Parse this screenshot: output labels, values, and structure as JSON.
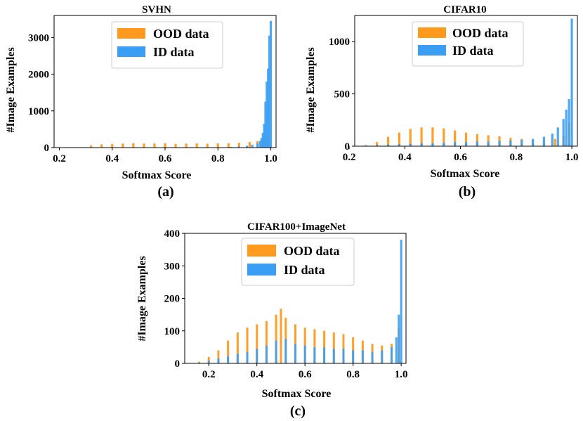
{
  "chart_data": [
    {
      "id": "svhn",
      "type": "histogram",
      "title": "SVHN",
      "xlabel": "Softmax Score",
      "ylabel": "#Image Examples",
      "caption": "(a)",
      "xlim": [
        0.18,
        1.02
      ],
      "ylim": [
        0,
        3600
      ],
      "xticks": [
        0.2,
        0.4,
        0.6,
        0.8,
        1.0
      ],
      "xtick_labels": [
        "0.2",
        "0.4",
        "0.6",
        "0.8",
        "1.0"
      ],
      "yticks": [
        0,
        1000,
        2000,
        3000
      ],
      "ytick_labels": [
        "0",
        "1000",
        "2000",
        "3000"
      ],
      "legend": [
        "OOD data",
        "ID data"
      ],
      "legend_position": "top-center",
      "series": [
        {
          "name": "OOD data",
          "color": "#ff9a1f",
          "x": [
            0.32,
            0.36,
            0.4,
            0.44,
            0.48,
            0.52,
            0.56,
            0.6,
            0.64,
            0.68,
            0.72,
            0.76,
            0.8,
            0.84,
            0.88,
            0.92,
            0.95,
            0.97,
            0.98,
            0.99
          ],
          "y": [
            60,
            90,
            100,
            110,
            120,
            110,
            110,
            120,
            100,
            110,
            115,
            105,
            115,
            120,
            130,
            150,
            180,
            250,
            320,
            380
          ]
        },
        {
          "name": "ID data",
          "color": "#3b9ef5",
          "x": [
            0.85,
            0.88,
            0.91,
            0.93,
            0.95,
            0.96,
            0.965,
            0.97,
            0.975,
            0.98,
            0.985,
            0.99,
            0.995,
            1.0
          ],
          "y": [
            20,
            30,
            50,
            80,
            120,
            180,
            260,
            400,
            650,
            1250,
            1800,
            2150,
            3050,
            3450
          ]
        }
      ]
    },
    {
      "id": "cifar10",
      "type": "histogram",
      "title": "CIFAR10",
      "xlabel": "Softmax Score",
      "ylabel": "#Image Examples",
      "caption": "(b)",
      "xlim": [
        0.22,
        1.02
      ],
      "ylim": [
        0,
        1250
      ],
      "xticks": [
        0.2,
        0.4,
        0.6,
        0.8,
        1.0
      ],
      "xtick_labels": [
        "0.2",
        "0.4",
        "0.6",
        "0.8",
        "1.0"
      ],
      "yticks": [
        0,
        500,
        1000
      ],
      "ytick_labels": [
        "0",
        "500",
        "1000"
      ],
      "legend": [
        "OOD data",
        "ID data"
      ],
      "legend_position": "top-center",
      "series": [
        {
          "name": "OOD data",
          "color": "#ff9a1f",
          "x": [
            0.26,
            0.3,
            0.34,
            0.38,
            0.42,
            0.46,
            0.5,
            0.54,
            0.58,
            0.62,
            0.66,
            0.7,
            0.74,
            0.78,
            0.82,
            0.86,
            0.9,
            0.94,
            0.97,
            0.99
          ],
          "y": [
            10,
            40,
            90,
            130,
            165,
            180,
            180,
            170,
            150,
            130,
            115,
            105,
            95,
            80,
            70,
            60,
            55,
            70,
            100,
            220
          ]
        },
        {
          "name": "ID data",
          "color": "#3b9ef5",
          "x": [
            0.26,
            0.3,
            0.34,
            0.38,
            0.42,
            0.46,
            0.5,
            0.54,
            0.58,
            0.62,
            0.66,
            0.7,
            0.74,
            0.78,
            0.82,
            0.86,
            0.9,
            0.93,
            0.95,
            0.97,
            0.98,
            0.99,
            1.0
          ],
          "y": [
            5,
            10,
            15,
            20,
            25,
            30,
            30,
            35,
            40,
            40,
            45,
            45,
            50,
            55,
            60,
            70,
            90,
            120,
            180,
            260,
            350,
            450,
            1220
          ]
        }
      ]
    },
    {
      "id": "cifar100-imagenet",
      "type": "histogram",
      "title": "CIFAR100+ImageNet",
      "xlabel": "Softmax Score",
      "ylabel": "#Image Examples",
      "caption": "(c)",
      "xlim": [
        0.1,
        1.02
      ],
      "ylim": [
        0,
        400
      ],
      "xticks": [
        0.2,
        0.4,
        0.6,
        0.8,
        1.0
      ],
      "xtick_labels": [
        "0.2",
        "0.4",
        "0.6",
        "0.8",
        "1.0"
      ],
      "yticks": [
        0,
        100,
        200,
        300,
        400
      ],
      "ytick_labels": [
        "0",
        "100",
        "200",
        "300",
        "400"
      ],
      "legend": [
        "OOD data",
        "ID data"
      ],
      "legend_position": "top-center",
      "series": [
        {
          "name": "OOD data",
          "color": "#ff9a1f",
          "x": [
            0.16,
            0.2,
            0.24,
            0.28,
            0.32,
            0.36,
            0.4,
            0.44,
            0.48,
            0.5,
            0.52,
            0.56,
            0.6,
            0.64,
            0.68,
            0.72,
            0.76,
            0.8,
            0.84,
            0.88,
            0.92,
            0.96,
            0.99
          ],
          "y": [
            5,
            20,
            40,
            70,
            95,
            110,
            120,
            130,
            150,
            168,
            140,
            120,
            110,
            105,
            100,
            95,
            90,
            80,
            70,
            60,
            55,
            60,
            110
          ]
        },
        {
          "name": "ID data",
          "color": "#3b9ef5",
          "x": [
            0.16,
            0.2,
            0.24,
            0.28,
            0.32,
            0.36,
            0.4,
            0.44,
            0.48,
            0.52,
            0.56,
            0.6,
            0.64,
            0.68,
            0.72,
            0.76,
            0.8,
            0.84,
            0.88,
            0.92,
            0.96,
            0.98,
            0.99,
            1.0
          ],
          "y": [
            2,
            8,
            15,
            22,
            30,
            35,
            45,
            55,
            70,
            75,
            60,
            55,
            50,
            50,
            45,
            45,
            40,
            40,
            35,
            40,
            50,
            80,
            150,
            380
          ]
        }
      ]
    }
  ]
}
